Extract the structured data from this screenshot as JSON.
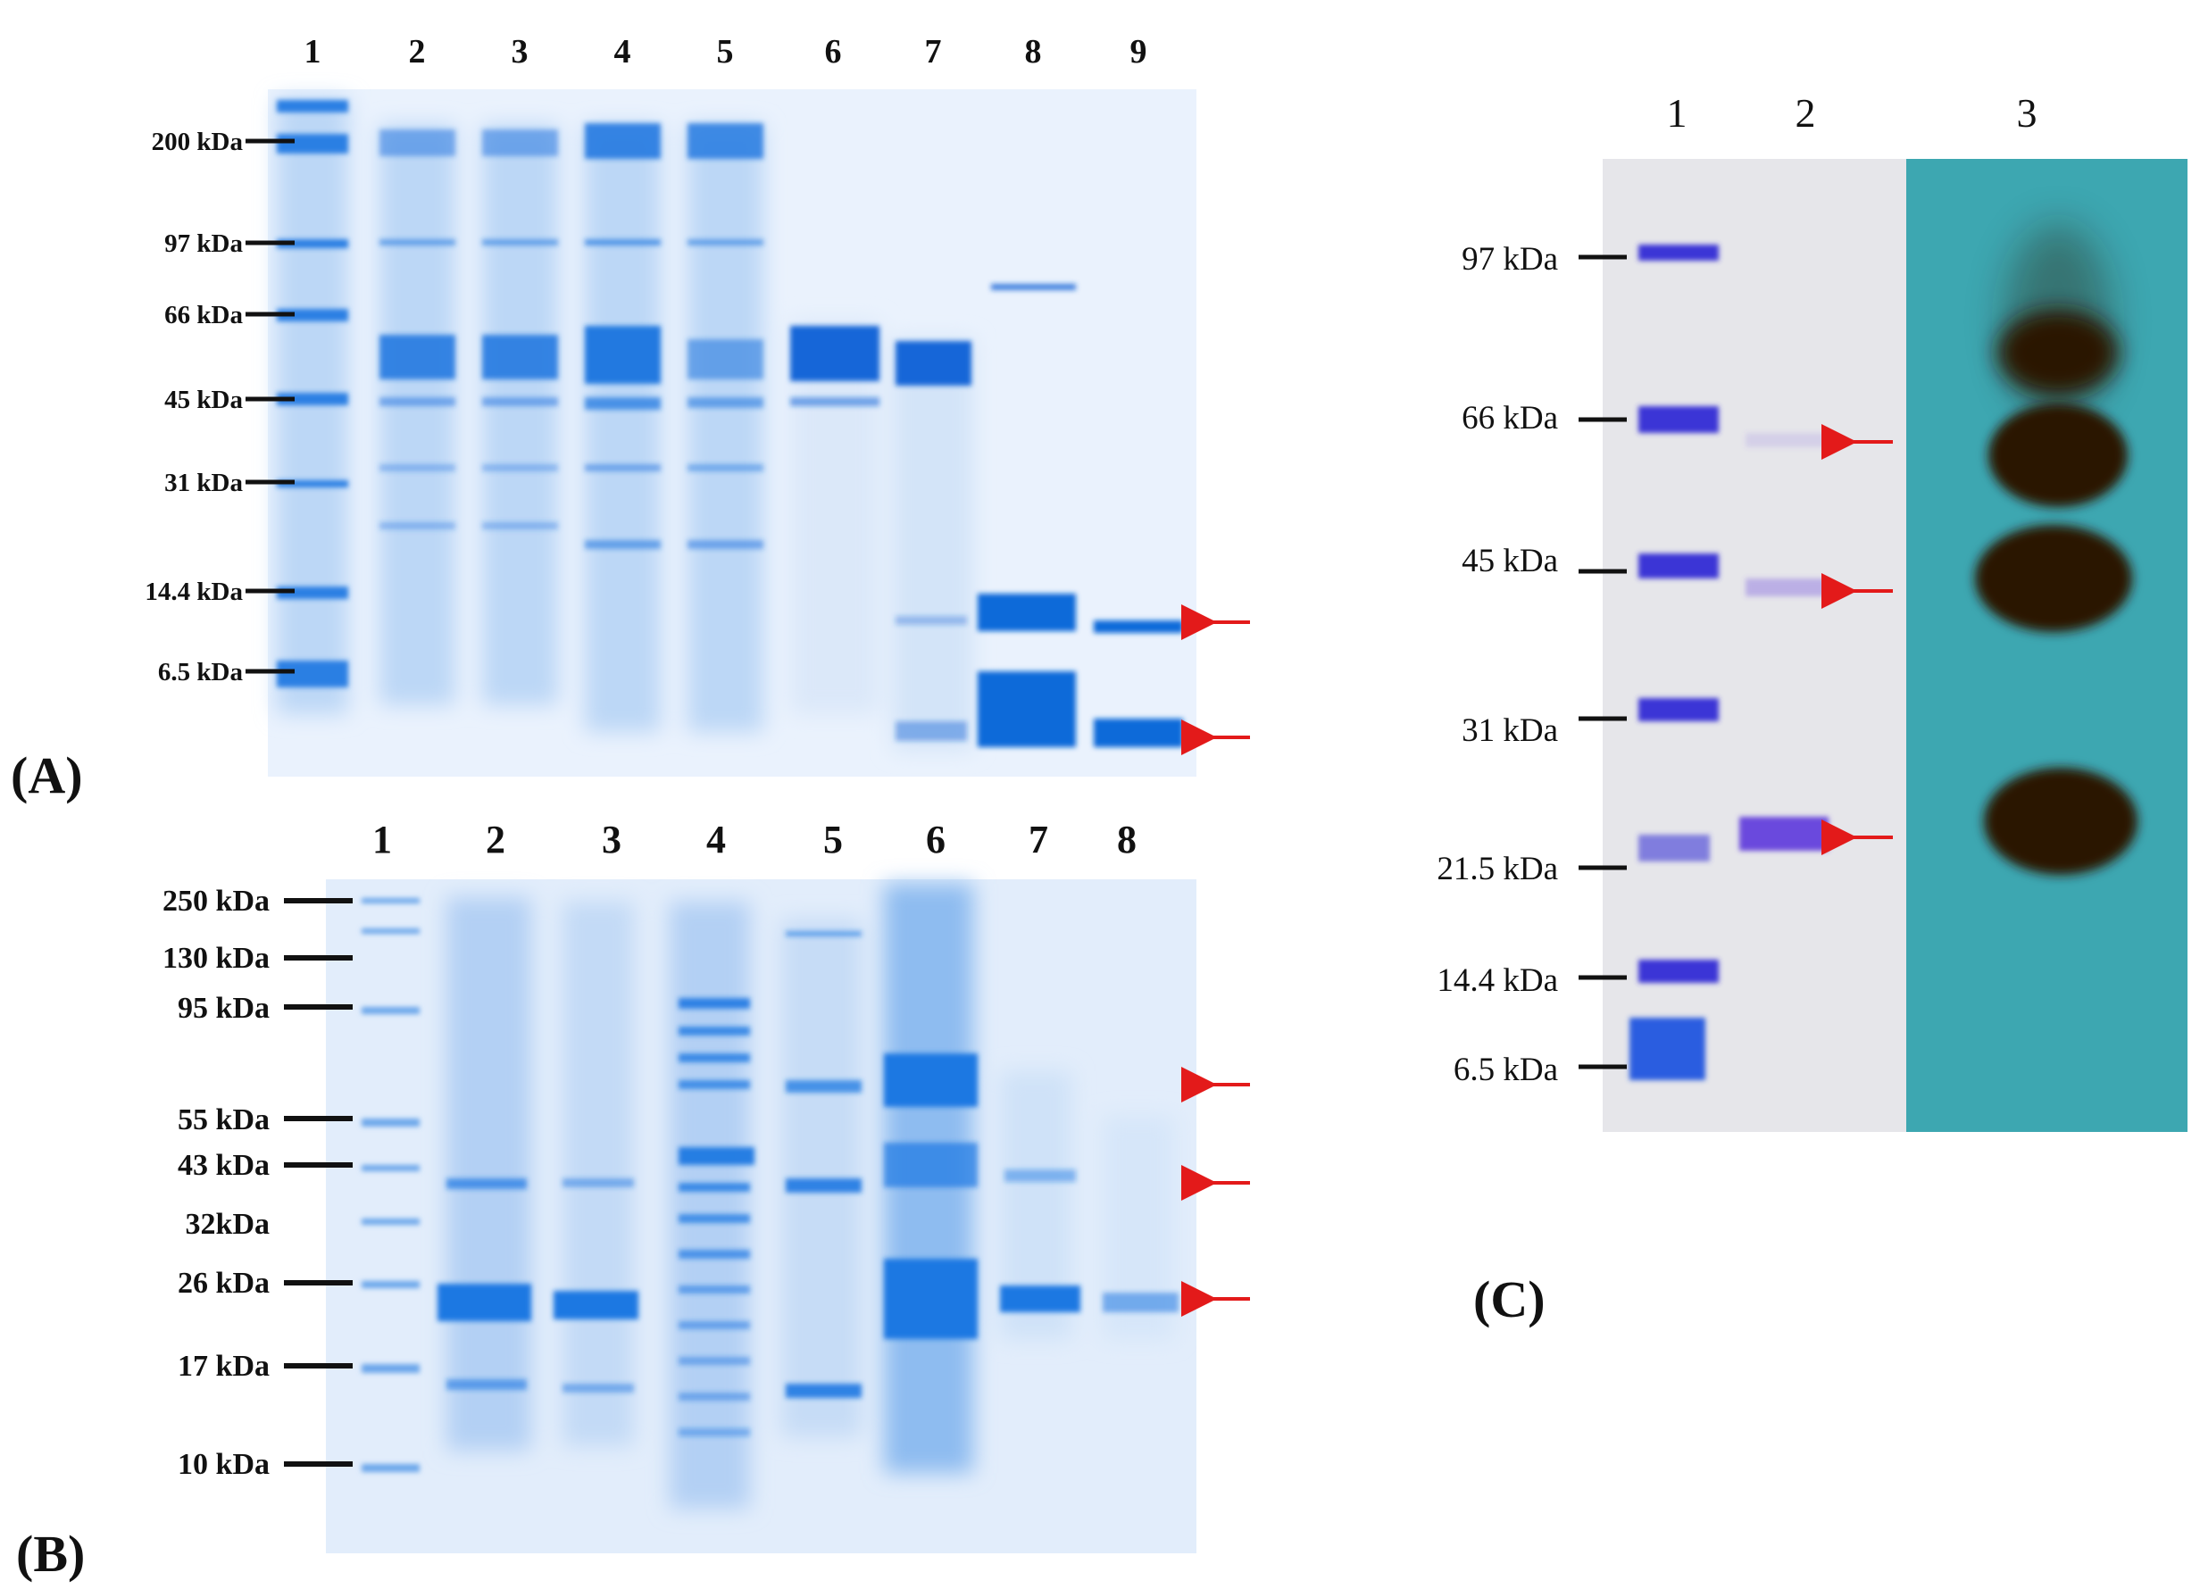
{
  "figure": {
    "panels": [
      {
        "id": "A",
        "label": "(A)",
        "lanes": [
          "1",
          "2",
          "3",
          "4",
          "5",
          "6",
          "7",
          "8",
          "9"
        ],
        "markers": [
          "200 kDa",
          "97 kDa",
          "66 kDa",
          "45 kDa",
          "31 kDa",
          "14.4 kDa",
          "6.5 kDa"
        ],
        "arrow_count": 2
      },
      {
        "id": "B",
        "label": "(B)",
        "lanes": [
          "1",
          "2",
          "3",
          "4",
          "5",
          "6",
          "7",
          "8"
        ],
        "markers": [
          "250 kDa",
          "130 kDa",
          "95 kDa",
          "55 kDa",
          "43 kDa",
          "32kDa",
          "26 kDa",
          "17 kDa",
          "10 kDa"
        ],
        "arrow_count": 3
      },
      {
        "id": "C",
        "label": "(C)",
        "lanes": [
          "1",
          "2",
          "3"
        ],
        "markers": [
          "97 kDa",
          "66 kDa",
          "45 kDa",
          "31 kDa",
          "21.5 kDa",
          "14.4 kDa",
          "6.5 kDa"
        ],
        "arrow_count": 3
      }
    ],
    "colors": {
      "gel_background": "#e4eefb",
      "coomassie_band": "#1a6fe0",
      "purple_band": "#5a3fd8",
      "membrane": "#3fa9b3",
      "western_band": "#2a1206",
      "arrow": "#e31a1a"
    }
  }
}
